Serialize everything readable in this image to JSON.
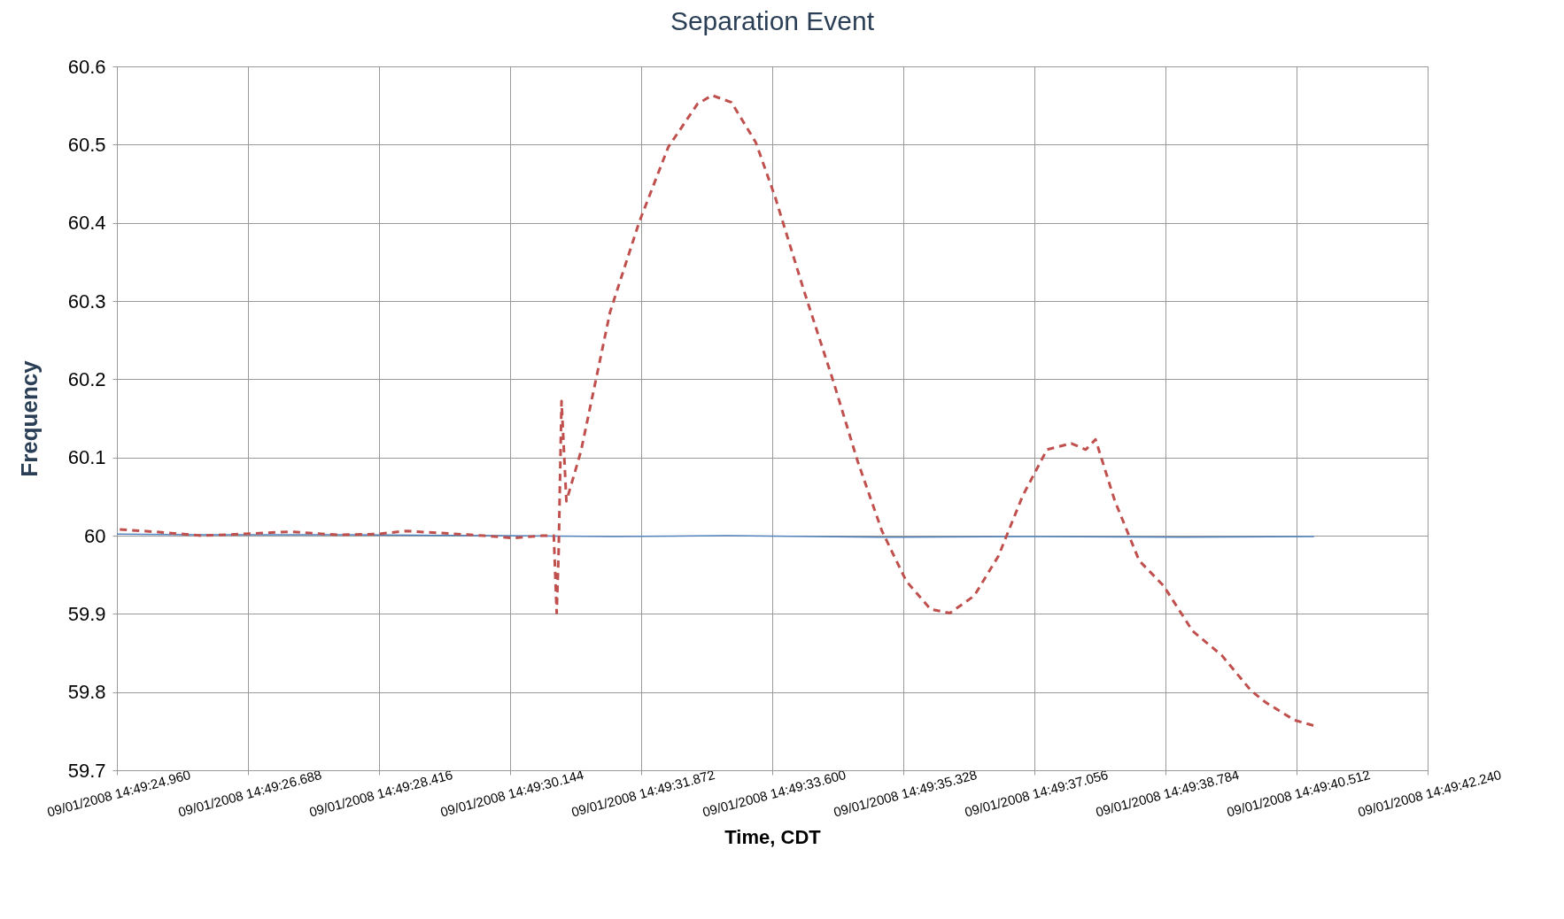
{
  "chart_data": {
    "type": "line",
    "title": "Separation Event",
    "xlabel": "Time, CDT",
    "ylabel": "Frequency",
    "xlim": [
      "2008-09-01T14:49:24.960",
      "2008-09-01T14:49:42.240"
    ],
    "xticks": [
      {
        "value": "2008-09-01T14:49:24.960",
        "label": "09/01/2008 14:49:24.960"
      },
      {
        "value": "2008-09-01T14:49:26.688",
        "label": "09/01/2008 14:49:26.688"
      },
      {
        "value": "2008-09-01T14:49:28.416",
        "label": "09/01/2008 14:49:28.416"
      },
      {
        "value": "2008-09-01T14:49:30.144",
        "label": "09/01/2008 14:49:30.144"
      },
      {
        "value": "2008-09-01T14:49:31.872",
        "label": "09/01/2008 14:49:31.872"
      },
      {
        "value": "2008-09-01T14:49:33.600",
        "label": "09/01/2008 14:49:33.600"
      },
      {
        "value": "2008-09-01T14:49:35.328",
        "label": "09/01/2008 14:49:35.328"
      },
      {
        "value": "2008-09-01T14:49:37.056",
        "label": "09/01/2008 14:49:37.056"
      },
      {
        "value": "2008-09-01T14:49:38.784",
        "label": "09/01/2008 14:49:38.784"
      },
      {
        "value": "2008-09-01T14:49:40.512",
        "label": "09/01/2008 14:49:40.512"
      },
      {
        "value": "2008-09-01T14:49:42.240",
        "label": "09/01/2008 14:49:42.240"
      }
    ],
    "ylim": [
      59.7,
      60.6
    ],
    "yticks": [
      59.7,
      59.8,
      59.9,
      60,
      60.1,
      60.2,
      60.3,
      60.4,
      60.5,
      60.6
    ],
    "grid": true,
    "series": [
      {
        "color": "#4f81bd",
        "line_style": "solid",
        "x": [
          "2008-09-01T14:49:24.960",
          "2008-09-01T14:49:26.000",
          "2008-09-01T14:49:28.000",
          "2008-09-01T14:49:30.000",
          "2008-09-01T14:49:31.500",
          "2008-09-01T14:49:33.000",
          "2008-09-01T14:49:35.000",
          "2008-09-01T14:49:37.000",
          "2008-09-01T14:49:39.000",
          "2008-09-01T14:49:40.742"
        ],
        "values": [
          60.002,
          60.001,
          60.001,
          60.0,
          59.999,
          60.0,
          59.998,
          59.999,
          59.998,
          59.999
        ]
      },
      {
        "color": "#c0504d",
        "line_style": "dashed",
        "x": [
          "2008-09-01T14:49:24.998",
          "2008-09-01T14:49:25.446",
          "2008-09-01T14:49:26.086",
          "2008-09-01T14:49:26.598",
          "2008-09-01T14:49:27.238",
          "2008-09-01T14:49:27.878",
          "2008-09-01T14:49:28.390",
          "2008-09-01T14:49:28.774",
          "2008-09-01T14:49:29.286",
          "2008-09-01T14:49:29.798",
          "2008-09-01T14:49:30.182",
          "2008-09-01T14:49:30.566",
          "2008-09-01T14:49:30.720",
          "2008-09-01T14:49:30.758",
          "2008-09-01T14:49:30.784",
          "2008-09-01T14:49:30.822",
          "2008-09-01T14:49:30.886",
          "2008-09-01T14:49:31.078",
          "2008-09-01T14:49:31.462",
          "2008-09-01T14:49:31.846",
          "2008-09-01T14:49:32.230",
          "2008-09-01T14:49:32.614",
          "2008-09-01T14:49:32.806",
          "2008-09-01T14:49:33.062",
          "2008-09-01T14:49:33.382",
          "2008-09-01T14:49:33.638",
          "2008-09-01T14:49:34.022",
          "2008-09-01T14:49:34.406",
          "2008-09-01T14:49:34.726",
          "2008-09-01T14:49:35.046",
          "2008-09-01T14:49:35.366",
          "2008-09-01T14:49:35.686",
          "2008-09-01T14:49:35.942",
          "2008-09-01T14:49:36.262",
          "2008-09-01T14:49:36.582",
          "2008-09-01T14:49:36.902",
          "2008-09-01T14:49:37.222",
          "2008-09-01T14:49:37.542",
          "2008-09-01T14:49:37.734",
          "2008-09-01T14:49:37.862",
          "2008-09-01T14:49:38.118",
          "2008-09-01T14:49:38.438",
          "2008-09-01T14:49:38.758",
          "2008-09-01T14:49:39.142",
          "2008-09-01T14:49:39.526",
          "2008-09-01T14:49:39.910",
          "2008-09-01T14:49:40.102",
          "2008-09-01T14:49:40.486",
          "2008-09-01T14:49:40.742"
        ],
        "values": [
          60.008,
          60.005,
          60.0,
          60.002,
          60.005,
          60.001,
          60.002,
          60.006,
          60.003,
          60.0,
          59.997,
          60.0,
          60.0,
          59.901,
          59.98,
          60.172,
          60.044,
          60.108,
          60.286,
          60.401,
          60.497,
          60.552,
          60.563,
          60.554,
          60.503,
          60.433,
          60.312,
          60.197,
          60.095,
          60.006,
          59.942,
          59.906,
          59.901,
          59.923,
          59.974,
          60.051,
          60.11,
          60.118,
          60.11,
          60.123,
          60.044,
          59.968,
          59.936,
          59.878,
          59.847,
          59.802,
          59.787,
          59.764,
          59.757
        ]
      }
    ]
  }
}
